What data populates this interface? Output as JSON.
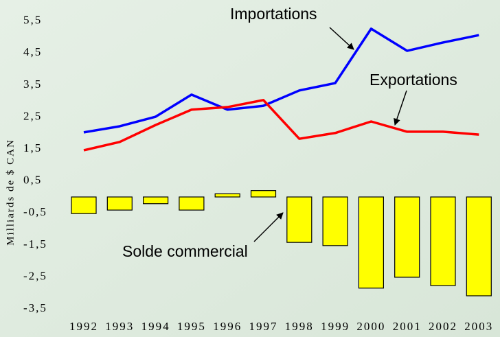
{
  "chart_data": {
    "type": "combo",
    "y_label": "Milliards de $ CAN",
    "categories": [
      "1992",
      "1993",
      "1994",
      "1995",
      "1996",
      "1997",
      "1998",
      "1999",
      "2000",
      "2001",
      "2002",
      "2003"
    ],
    "series": [
      {
        "name": "Importations",
        "type": "line",
        "color": "#0000ff",
        "values": [
          2.02,
          2.21,
          2.51,
          3.2,
          2.73,
          2.85,
          3.33,
          3.56,
          5.26,
          4.57,
          4.83,
          5.06
        ]
      },
      {
        "name": "Exportations",
        "type": "line",
        "color": "#ff0000",
        "values": [
          1.46,
          1.72,
          2.25,
          2.73,
          2.81,
          3.03,
          1.82,
          2.0,
          2.36,
          2.04,
          2.04,
          1.95
        ]
      },
      {
        "name": "Solde commercial",
        "type": "bar",
        "color": "#ffff00",
        "values": [
          -0.52,
          -0.41,
          -0.21,
          -0.41,
          0.1,
          0.2,
          -1.42,
          -1.52,
          -2.85,
          -2.51,
          -2.77,
          -3.09
        ]
      }
    ],
    "ylim": [
      -3.7,
      5.8
    ],
    "yticks": [
      {
        "value": 5.5,
        "label": "5,5"
      },
      {
        "value": 4.5,
        "label": "4,5"
      },
      {
        "value": 3.5,
        "label": "3,5"
      },
      {
        "value": 2.5,
        "label": "2,5"
      },
      {
        "value": 1.5,
        "label": "1,5"
      },
      {
        "value": 0.5,
        "label": "0,5"
      },
      {
        "value": -0.5,
        "label": "-0,5"
      },
      {
        "value": -1.5,
        "label": "-1,5"
      },
      {
        "value": -2.5,
        "label": "-2,5"
      },
      {
        "value": -3.5,
        "label": "-3,5"
      }
    ]
  }
}
